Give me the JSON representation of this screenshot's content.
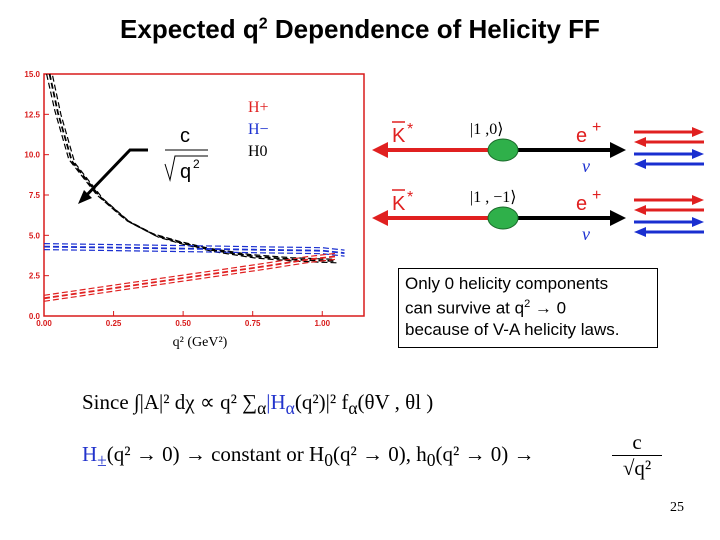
{
  "title": {
    "main": "Expected q",
    "sup": "2",
    "rest": " Dependence of Helicity FF"
  },
  "chart_data": {
    "type": "line",
    "title": "",
    "xlabel": "q² (GeV²)",
    "ylabel": "",
    "xlim": [
      0,
      1.15
    ],
    "ylim": [
      0,
      15
    ],
    "x_ticks": [
      "0.00",
      "0.25",
      "0.50",
      "0.75",
      "1.00"
    ],
    "y_ticks": [
      "0.0",
      "2.5",
      "5.0",
      "7.5",
      "10.0",
      "12.5",
      "15.0"
    ],
    "legend": [
      "H+",
      "H−",
      "H0"
    ],
    "legend_placement": "top-right",
    "series": [
      {
        "name": "H0",
        "color": "#000000",
        "style": "dashed",
        "x": [
          0.02,
          0.05,
          0.1,
          0.2,
          0.3,
          0.4,
          0.5,
          0.6,
          0.75,
          0.9,
          1.05
        ],
        "values": [
          15.0,
          12.6,
          9.6,
          7.4,
          5.9,
          5.0,
          4.5,
          4.1,
          3.7,
          3.5,
          3.4
        ]
      },
      {
        "name": "H−",
        "color": "#1a2fd0",
        "style": "dashed",
        "x": [
          0.0,
          0.2,
          0.4,
          0.6,
          0.8,
          1.0,
          1.08
        ],
        "values": [
          4.3,
          4.25,
          4.2,
          4.15,
          4.1,
          4.05,
          3.9
        ]
      },
      {
        "name": "H+",
        "color": "#e02020",
        "style": "dashed",
        "x": [
          0.0,
          0.2,
          0.4,
          0.6,
          0.8,
          0.95,
          1.05
        ],
        "values": [
          1.1,
          1.6,
          2.1,
          2.6,
          3.1,
          3.5,
          3.7
        ]
      }
    ],
    "formula_numerator": "c",
    "formula_denominator": "q",
    "formula_sup": "2"
  },
  "diagram": {
    "row1": {
      "meson": "K",
      "star": "*",
      "state": "|1 ,0⟩",
      "lepton": "e",
      "charge": "+",
      "nu": "ν"
    },
    "row2": {
      "meson": "K",
      "star": "*",
      "state": "|1 , −1⟩",
      "lepton": "e",
      "charge": "+",
      "nu": "ν"
    }
  },
  "note": {
    "line1": "Only 0 helicity components",
    "line2a": "can survive at q",
    "line2sup": "2",
    "line2b": " → 0",
    "line3": "because of V-A helicity laws."
  },
  "equations": {
    "since": "Since ∫|A|² dχ ∝ q² ∑",
    "since_rest": "|H",
    "since_tail": "(q²)|² f",
    "since_end": "(θ",
    "since_close": "V , θ",
    "since_fin": "l )",
    "alpha": "α",
    "line2_a": "H",
    "line2_pm": "±",
    "line2_b": "(q² → 0) → constant or H",
    "line2_0": "0",
    "line2_c": "(q² → 0), h",
    "line2_d": "0",
    "line2_e": "(q² → 0)   →",
    "frac_num": "c",
    "frac_den": "√q²"
  },
  "page_number": "25"
}
